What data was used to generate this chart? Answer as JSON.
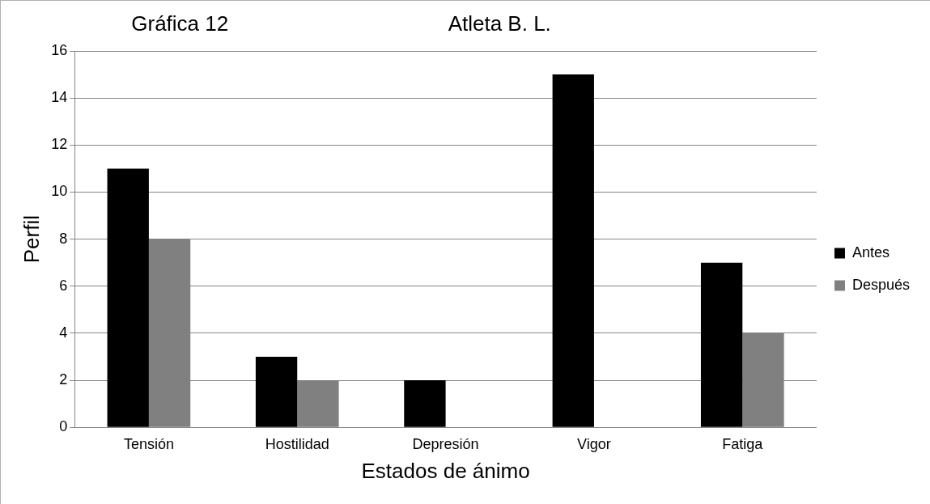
{
  "chart_data": {
    "type": "bar",
    "title": "Gráfica 12",
    "subtitle": "Atleta B. L.",
    "xlabel": "Estados de ánimo",
    "ylabel": "Perfil",
    "categories": [
      "Tensión",
      "Hostilidad",
      "Depresión",
      "Vigor",
      "Fatiga"
    ],
    "series": [
      {
        "name": "Antes",
        "color": "#000000",
        "values": [
          11,
          3,
          2,
          15,
          7
        ]
      },
      {
        "name": "Después",
        "color": "#808080",
        "values": [
          8,
          2,
          0,
          0,
          4
        ]
      }
    ],
    "ylim": [
      0,
      16
    ],
    "yticks": [
      0,
      2,
      4,
      6,
      8,
      10,
      12,
      14,
      16
    ],
    "grid": "y",
    "legend": "right"
  }
}
